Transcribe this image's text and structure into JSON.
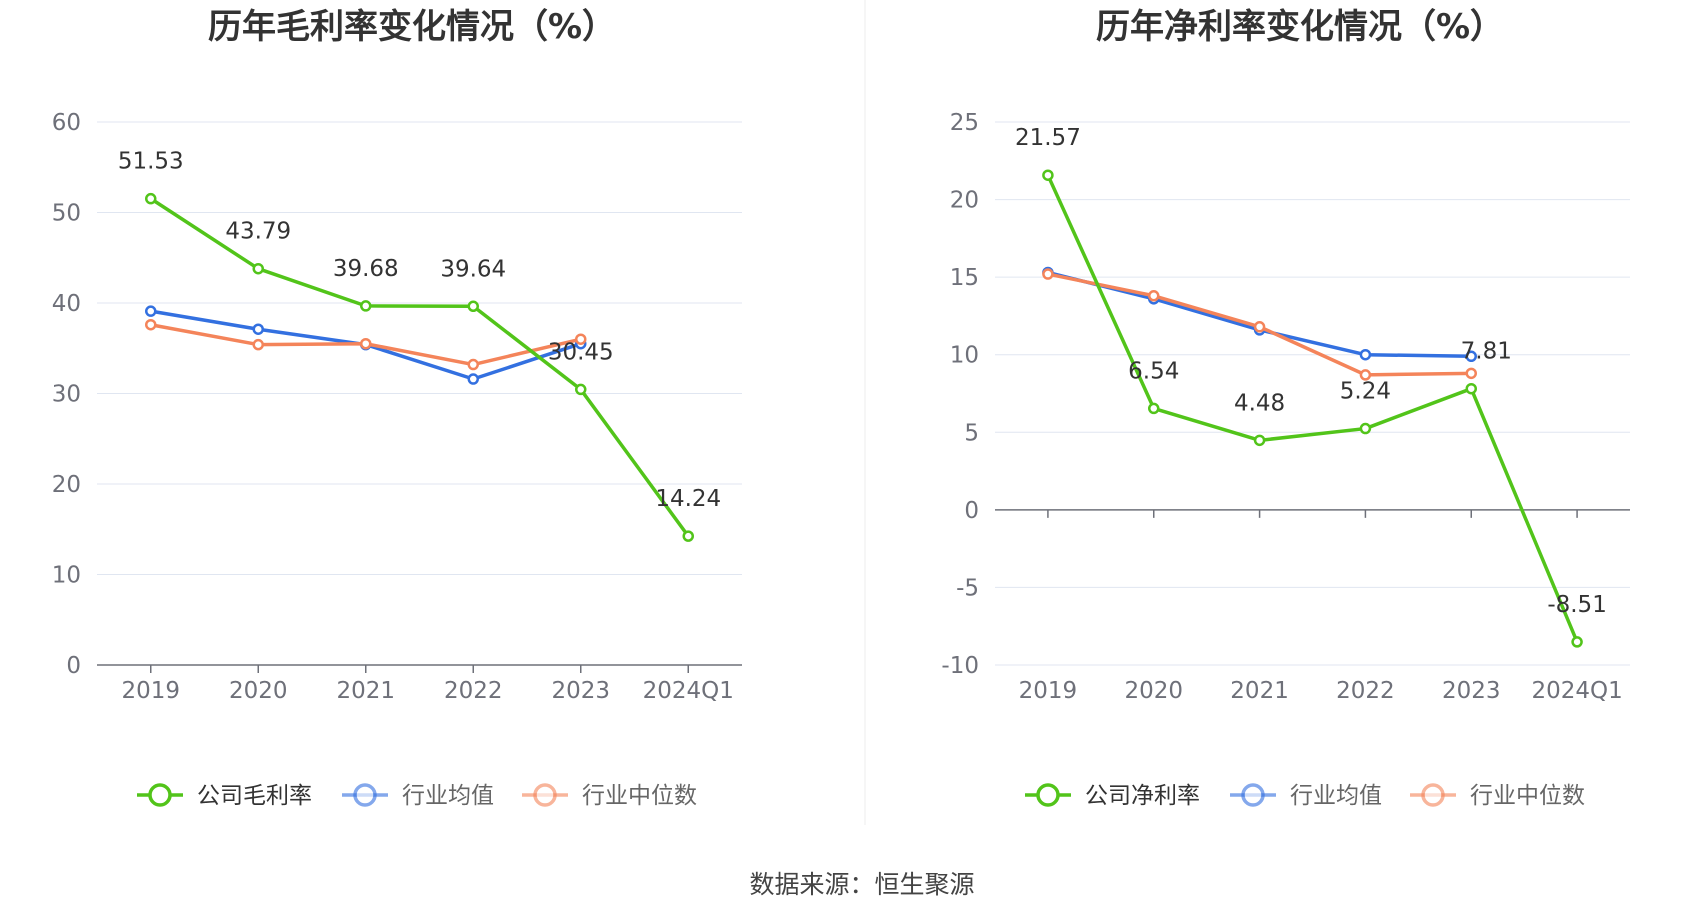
{
  "footer": {
    "source": "数据来源：恒生聚源"
  },
  "chart_data": [
    {
      "type": "line",
      "title": "历年毛利率变化情况（%）",
      "categories": [
        "2019",
        "2020",
        "2021",
        "2022",
        "2023",
        "2024Q1"
      ],
      "ylim": [
        0,
        60
      ],
      "yticks": [
        0,
        10,
        20,
        30,
        40,
        50,
        60
      ],
      "series": [
        {
          "name": "公司毛利率",
          "color": "#52c41a",
          "values": [
            51.53,
            43.79,
            39.68,
            39.64,
            30.45,
            14.24
          ],
          "labels": [
            "51.53",
            "43.79",
            "39.68",
            "39.64",
            "30.45",
            "14.24"
          ]
        },
        {
          "name": "行业均值",
          "color": "#3370e0",
          "values": [
            39.1,
            37.1,
            35.4,
            31.6,
            35.5,
            null
          ]
        },
        {
          "name": "行业中位数",
          "color": "#f4845a",
          "values": [
            37.6,
            35.4,
            35.5,
            33.2,
            36.0,
            null
          ]
        }
      ]
    },
    {
      "type": "line",
      "title": "历年净利率变化情况（%）",
      "categories": [
        "2019",
        "2020",
        "2021",
        "2022",
        "2023",
        "2024Q1"
      ],
      "ylim": [
        -10,
        25
      ],
      "yticks": [
        -10,
        -5,
        0,
        5,
        10,
        15,
        20,
        25
      ],
      "series": [
        {
          "name": "公司净利率",
          "color": "#52c41a",
          "values": [
            21.57,
            6.54,
            4.48,
            5.24,
            7.81,
            -8.51
          ],
          "labels": [
            "21.57",
            "6.54",
            "4.48",
            "5.24",
            "7.81",
            "-8.51"
          ]
        },
        {
          "name": "行业均值",
          "color": "#3370e0",
          "values": [
            15.3,
            13.6,
            11.6,
            10.0,
            9.9,
            null
          ]
        },
        {
          "name": "行业中位数",
          "color": "#f4845a",
          "values": [
            15.2,
            13.8,
            11.8,
            8.7,
            8.8,
            null
          ]
        }
      ]
    }
  ]
}
